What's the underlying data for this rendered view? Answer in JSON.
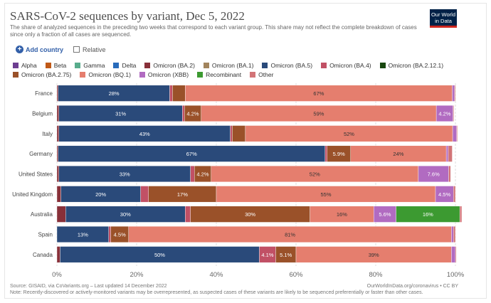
{
  "title": "SARS-CoV-2 sequences by variant, Dec 5, 2022",
  "subtitle": "The share of analyzed sequences in the preceding two weeks that correspond to each variant group. This share may not reflect the complete breakdown of cases since only a fraction of all cases are sequenced.",
  "logo": {
    "line1": "Our World",
    "line2": "in Data"
  },
  "controls": {
    "add_country": "Add country",
    "relative": "Relative"
  },
  "footer": {
    "source": "Source: GISAID, via CoVariants.org – Last updated 14 December 2022",
    "credit": "OurWorldInData.org/coronavirus • CC BY",
    "note": "Note: Recently-discovered or actively-monitored variants may be overrepresented, as suspected cases of these variants are likely to be sequenced preferentially or faster than other cases."
  },
  "chart_data": {
    "type": "bar",
    "orientation": "horizontal",
    "stacked": true,
    "title": "SARS-CoV-2 sequences by variant, Dec 5, 2022",
    "xlim": [
      0,
      100
    ],
    "xticks": [
      "0%",
      "20%",
      "40%",
      "60%",
      "80%",
      "100%"
    ],
    "categories": [
      "France",
      "Belgium",
      "Italy",
      "Germany",
      "United States",
      "United Kingdom",
      "Australia",
      "Spain",
      "Canada"
    ],
    "series": [
      {
        "name": "Alpha",
        "color": "#6d3e91",
        "values": [
          0,
          0,
          0,
          0,
          0,
          0,
          0,
          0,
          0
        ]
      },
      {
        "name": "Beta",
        "color": "#c05917",
        "values": [
          0,
          0,
          0,
          0,
          0,
          0,
          0,
          0,
          0
        ]
      },
      {
        "name": "Gamma",
        "color": "#58ac8c",
        "values": [
          0,
          0,
          0,
          0,
          0,
          0,
          0,
          0,
          0
        ]
      },
      {
        "name": "Delta",
        "color": "#286bbb",
        "values": [
          0,
          0,
          0,
          0,
          0,
          0,
          0,
          0,
          0
        ]
      },
      {
        "name": "Omicron (BA.2)",
        "color": "#883039",
        "values": [
          0.3,
          0.5,
          0.5,
          0.3,
          0.5,
          1.0,
          2.2,
          0,
          0.8
        ]
      },
      {
        "name": "Omicron (BA.1)",
        "color": "#a2845d",
        "values": [
          0,
          0,
          0,
          0,
          0,
          0,
          0,
          0,
          0
        ]
      },
      {
        "name": "Omicron (BA.5)",
        "color": "#2a4a7a",
        "values": [
          28,
          31,
          43,
          67,
          33,
          20,
          30,
          13,
          50
        ]
      },
      {
        "name": "Omicron (BA.4)",
        "color": "#c15065",
        "values": [
          0.7,
          0.5,
          0.5,
          0.5,
          1.0,
          2.0,
          1.3,
          0.5,
          4.1
        ]
      },
      {
        "name": "Omicron (BA.2.12.1)",
        "color": "#18470f",
        "values": [
          0,
          0,
          0,
          0,
          0,
          0,
          0,
          0,
          0
        ]
      },
      {
        "name": "Omicron (BA.2.75)",
        "color": "#9a5129",
        "values": [
          3.2,
          4.2,
          3.3,
          5.9,
          4.2,
          17,
          30,
          4.5,
          5.1
        ]
      },
      {
        "name": "Omicron (BQ.1)",
        "color": "#e57e6e",
        "values": [
          67,
          59,
          52,
          24,
          52,
          55,
          16,
          81,
          39
        ]
      },
      {
        "name": "Omicron (XBB)",
        "color": "#b16bc1",
        "values": [
          0.6,
          4.2,
          1.0,
          0.5,
          7.6,
          4.5,
          5.6,
          0.5,
          1.0
        ]
      },
      {
        "name": "Recombinant",
        "color": "#3c9a31",
        "values": [
          0,
          0,
          0,
          0,
          0,
          0,
          16,
          0,
          0
        ]
      },
      {
        "name": "Other",
        "color": "#d27477",
        "values": [
          0.2,
          0.2,
          0.2,
          1.0,
          0.5,
          0.5,
          0.5,
          0.5,
          0.2
        ]
      }
    ],
    "data_labels": [
      {
        "row": 0,
        "series": "Omicron (BA.5)",
        "text": "28%"
      },
      {
        "row": 0,
        "series": "Omicron (BQ.1)",
        "text": "67%"
      },
      {
        "row": 1,
        "series": "Omicron (BA.5)",
        "text": "31%"
      },
      {
        "row": 1,
        "series": "Omicron (BA.2.75)",
        "text": "4.2%"
      },
      {
        "row": 1,
        "series": "Omicron (BQ.1)",
        "text": "59%"
      },
      {
        "row": 1,
        "series": "Omicron (XBB)",
        "text": "4.2%"
      },
      {
        "row": 2,
        "series": "Omicron (BA.5)",
        "text": "43%"
      },
      {
        "row": 2,
        "series": "Omicron (BQ.1)",
        "text": "52%"
      },
      {
        "row": 3,
        "series": "Omicron (BA.5)",
        "text": "67%"
      },
      {
        "row": 3,
        "series": "Omicron (BA.2.75)",
        "text": "5.9%"
      },
      {
        "row": 3,
        "series": "Omicron (BQ.1)",
        "text": "24%"
      },
      {
        "row": 4,
        "series": "Omicron (BA.5)",
        "text": "33%"
      },
      {
        "row": 4,
        "series": "Omicron (BA.2.75)",
        "text": "4.2%"
      },
      {
        "row": 4,
        "series": "Omicron (BQ.1)",
        "text": "52%"
      },
      {
        "row": 4,
        "series": "Omicron (XBB)",
        "text": "7.6%"
      },
      {
        "row": 5,
        "series": "Omicron (BA.5)",
        "text": "20%"
      },
      {
        "row": 5,
        "series": "Omicron (BA.2.75)",
        "text": "17%"
      },
      {
        "row": 5,
        "series": "Omicron (BQ.1)",
        "text": "55%"
      },
      {
        "row": 5,
        "series": "Omicron (XBB)",
        "text": "4.5%"
      },
      {
        "row": 6,
        "series": "Omicron (BA.5)",
        "text": "30%"
      },
      {
        "row": 6,
        "series": "Omicron (BA.2.75)",
        "text": "30%"
      },
      {
        "row": 6,
        "series": "Omicron (BQ.1)",
        "text": "16%"
      },
      {
        "row": 6,
        "series": "Omicron (XBB)",
        "text": "5.6%"
      },
      {
        "row": 6,
        "series": "Recombinant",
        "text": "16%"
      },
      {
        "row": 7,
        "series": "Omicron (BA.5)",
        "text": "13%"
      },
      {
        "row": 7,
        "series": "Omicron (BA.2.75)",
        "text": "4.5%"
      },
      {
        "row": 7,
        "series": "Omicron (BQ.1)",
        "text": "81%"
      },
      {
        "row": 8,
        "series": "Omicron (BA.5)",
        "text": "50%"
      },
      {
        "row": 8,
        "series": "Omicron (BA.4)",
        "text": "4.1%"
      },
      {
        "row": 8,
        "series": "Omicron (BA.2.75)",
        "text": "5.1%"
      },
      {
        "row": 8,
        "series": "Omicron (BQ.1)",
        "text": "39%"
      }
    ]
  }
}
